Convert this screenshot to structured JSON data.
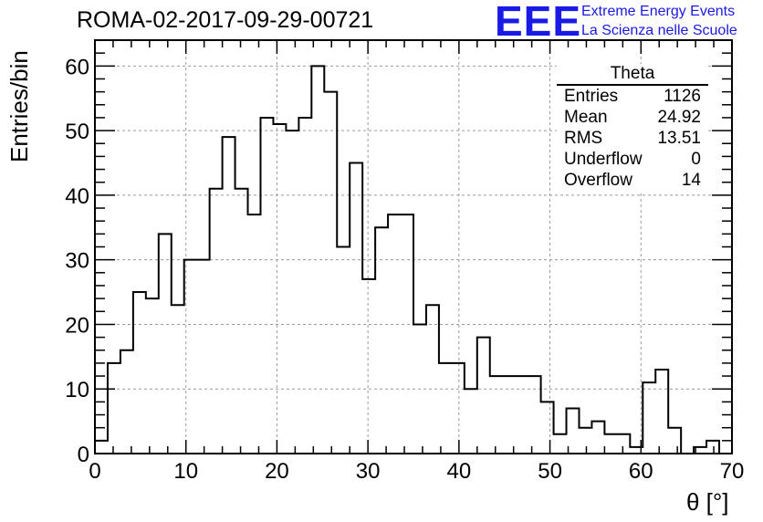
{
  "title": "ROMA-02-2017-09-29-00721",
  "logo": {
    "text": "EEE",
    "line1": "Extreme Energy Events",
    "line2": "La Scienza nelle Scuole",
    "color": "#1a1ae6"
  },
  "stats": {
    "name": "Theta",
    "rows": [
      {
        "label": "Entries",
        "value": "1126"
      },
      {
        "label": "Mean",
        "value": "24.92"
      },
      {
        "label": "RMS",
        "value": "13.51"
      },
      {
        "label": "Underflow",
        "value": "0"
      },
      {
        "label": "Overflow",
        "value": "14"
      }
    ]
  },
  "chart_data": {
    "type": "histogram",
    "xlabel": "θ [°]",
    "ylabel": "Entries/bin",
    "xlim": [
      0,
      70
    ],
    "ylim": [
      0,
      64
    ],
    "grid": true,
    "bin_width": 1.4,
    "bin_edges_start": 0,
    "values": [
      2,
      14,
      16,
      25,
      24,
      34,
      23,
      30,
      30,
      41,
      49,
      41,
      37,
      52,
      51,
      50,
      52,
      60,
      56,
      32,
      45,
      27,
      35,
      37,
      37,
      20,
      23,
      14,
      14,
      10,
      18,
      12,
      12,
      12,
      12,
      8,
      3,
      7,
      4,
      5,
      3,
      3,
      1,
      11,
      13,
      4,
      0,
      1,
      2,
      0
    ],
    "xticks": [
      0,
      10,
      20,
      30,
      40,
      50,
      60,
      70
    ],
    "yticks": [
      0,
      10,
      20,
      30,
      40,
      50,
      60
    ],
    "line_color": "#000000"
  }
}
